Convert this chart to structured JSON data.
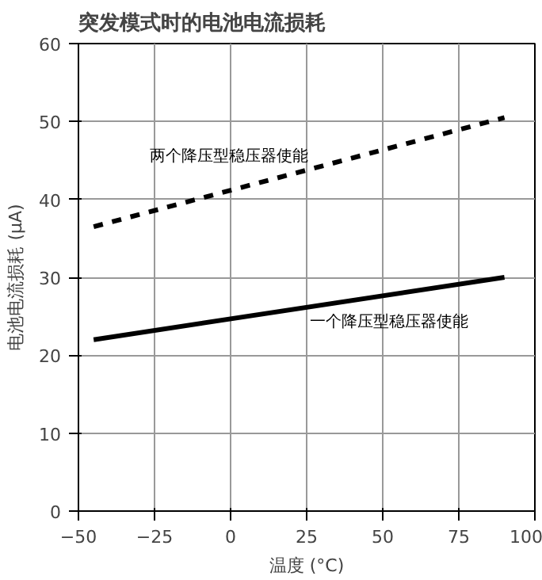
{
  "chart_data": {
    "type": "line",
    "title": "突发模式时的电池电流损耗",
    "xlabel": "温度 (°C)",
    "ylabel": "电池电流损耗 (μA)",
    "xlim": [
      -50,
      100
    ],
    "xticks": [
      -50,
      -25,
      0,
      25,
      50,
      75,
      100
    ],
    "ylim": [
      0,
      60
    ],
    "yticks": [
      0,
      10,
      20,
      30,
      40,
      50,
      60
    ],
    "grid": true,
    "x": [
      -45,
      90
    ],
    "series": [
      {
        "name": "两个降压型稳压器使能",
        "color": "#000000",
        "line_style": "dashed",
        "values": [
          36.5,
          50.5
        ]
      },
      {
        "name": "一个降压型稳压器使能",
        "color": "#000000",
        "line_style": "solid",
        "values": [
          22,
          30
        ]
      }
    ]
  }
}
